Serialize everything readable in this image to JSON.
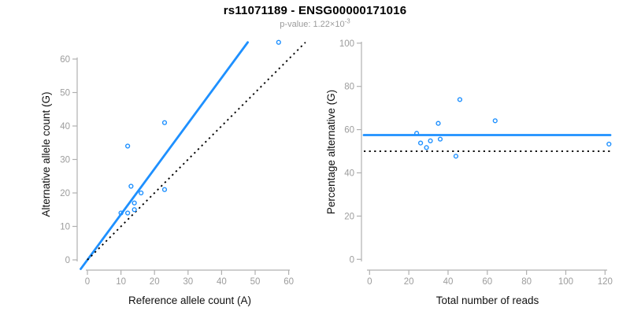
{
  "header": {
    "title": "rs11071189 - ENSG00000171016",
    "subtitle_prefix": "p-value: 1.22×10",
    "subtitle_exponent": "-3"
  },
  "colors": {
    "accent_blue": "#1E90FF",
    "line_black": "#000000",
    "axis_gray": "#b0b0b0",
    "tick_label_gray": "#9c9c9c",
    "title_black": "#000000",
    "subtitle_gray": "#9b9b9b"
  },
  "chart_data": [
    {
      "type": "scatter",
      "name": "allele-counts-scatter",
      "xlabel": "Reference allele count (A)",
      "ylabel": "Alternative allele count (G)",
      "xticks": [
        0,
        10,
        20,
        30,
        40,
        50,
        60
      ],
      "yticks": [
        0,
        10,
        20,
        30,
        40,
        50,
        60
      ],
      "xlim": [
        0,
        65
      ],
      "ylim": [
        0,
        65
      ],
      "grid": false,
      "marker": "open-circle",
      "points": [
        {
          "x": 10,
          "y": 14
        },
        {
          "x": 12,
          "y": 14
        },
        {
          "x": 12,
          "y": 34
        },
        {
          "x": 13,
          "y": 22
        },
        {
          "x": 14,
          "y": 15
        },
        {
          "x": 14,
          "y": 17
        },
        {
          "x": 16,
          "y": 20
        },
        {
          "x": 23,
          "y": 21
        },
        {
          "x": 23,
          "y": 41
        },
        {
          "x": 57,
          "y": 65
        }
      ],
      "ablines": [
        {
          "name": "fitted-allelic-ratio-line",
          "slope": 1.36,
          "intercept": 0,
          "style": "solid",
          "color_key": "accent_blue"
        },
        {
          "name": "identity-line",
          "slope": 1,
          "intercept": 0,
          "style": "dotted",
          "color_key": "line_black"
        }
      ]
    },
    {
      "type": "scatter",
      "name": "percentage-vs-reads-scatter",
      "xlabel": "Total number of reads",
      "ylabel": "Percentage alternative (G)",
      "xticks": [
        0,
        20,
        40,
        60,
        80,
        100,
        120
      ],
      "yticks": [
        0,
        20,
        40,
        60,
        80,
        100
      ],
      "xlim": [
        0,
        127
      ],
      "ylim": [
        0,
        100
      ],
      "grid": false,
      "marker": "open-circle",
      "points": [
        {
          "x": 24,
          "y": 58.3
        },
        {
          "x": 26,
          "y": 53.8
        },
        {
          "x": 29,
          "y": 51.7
        },
        {
          "x": 31,
          "y": 54.8
        },
        {
          "x": 35,
          "y": 62.9
        },
        {
          "x": 36,
          "y": 55.6
        },
        {
          "x": 44,
          "y": 47.7
        },
        {
          "x": 46,
          "y": 73.9
        },
        {
          "x": 64,
          "y": 64.1
        },
        {
          "x": 122,
          "y": 53.3
        }
      ],
      "hlines": [
        {
          "name": "mean-percentage-line",
          "y": 57.5,
          "style": "solid",
          "color_key": "accent_blue"
        },
        {
          "name": "fifty-percent-line",
          "y": 50,
          "style": "dotted",
          "color_key": "line_black"
        }
      ]
    }
  ]
}
